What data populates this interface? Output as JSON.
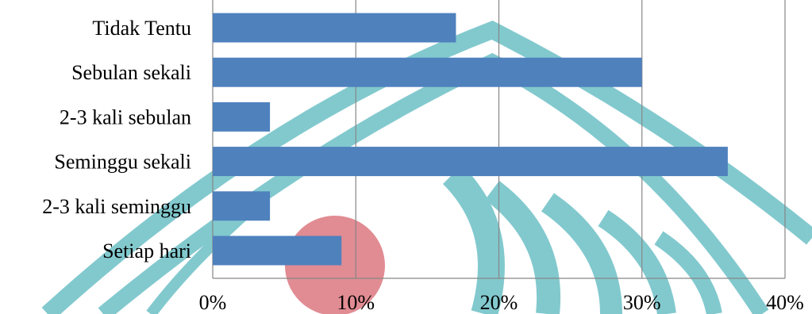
{
  "chart_data": {
    "type": "bar",
    "orientation": "horizontal",
    "categories": [
      "Tidak Tentu",
      "Sebulan sekali",
      "2-3 kali sebulan",
      "Seminggu sekali",
      "2-3 kali seminggu",
      "Setiap hari"
    ],
    "values": [
      17,
      30,
      4,
      36,
      4,
      9
    ],
    "x_ticks": [
      "0%",
      "10%",
      "20%",
      "30%",
      "40%"
    ],
    "xlim": [
      0,
      40
    ],
    "grid": "vertical",
    "legend": "none",
    "bar_color": "#4f81bd",
    "watermark_colors": [
      "#7cc7cc",
      "#e0868e"
    ]
  }
}
